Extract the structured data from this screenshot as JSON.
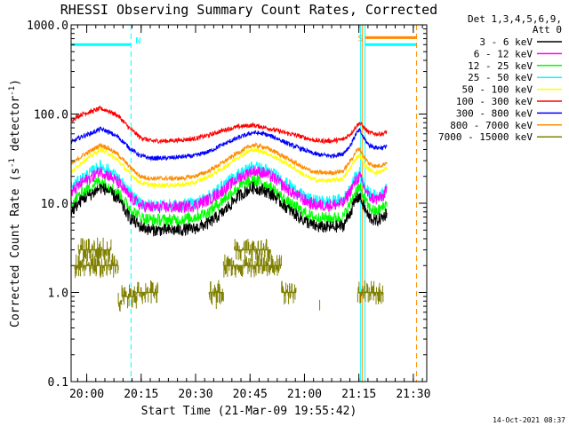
{
  "chart_data": {
    "type": "line",
    "title": "RHESSI Observing Summary Count Rates, Corrected",
    "xlabel": "Start Time (21-Mar-09 19:55:42)",
    "ylabel": "Corrected Count Rate (s^-1 detector^-1)",
    "ylabel_parts": {
      "main": "Corrected Count Rate (s",
      "sup1": "-1",
      "mid": " detector",
      "sup2": "-1",
      "end": ")"
    },
    "yscale": "log",
    "ylim": [
      0.1,
      1000
    ],
    "xlim_minutes": [
      0,
      98
    ],
    "x_ticks": [
      {
        "label": "20:00",
        "minutes": 4.3
      },
      {
        "label": "20:15",
        "minutes": 19.3
      },
      {
        "label": "20:30",
        "minutes": 34.3
      },
      {
        "label": "20:45",
        "minutes": 49.3
      },
      {
        "label": "21:00",
        "minutes": 64.3
      },
      {
        "label": "21:15",
        "minutes": 79.3
      },
      {
        "label": "21:30",
        "minutes": 94.3
      }
    ],
    "y_ticks": [
      {
        "label": "0.1",
        "value": 0.1
      },
      {
        "label": "1.0",
        "value": 1
      },
      {
        "label": "10.0",
        "value": 10
      },
      {
        "label": "100.0",
        "value": 100
      },
      {
        "label": "1000.0",
        "value": 1000
      }
    ],
    "legend": {
      "position": "right",
      "header": [
        "Det 1,3,4,5,6,9,",
        "Att 0"
      ],
      "entries": [
        {
          "name": "3 - 6 keV",
          "color": "#000000"
        },
        {
          "name": "6 - 12 keV",
          "color": "#ff00ff"
        },
        {
          "name": "12 - 25 keV",
          "color": "#00ff00"
        },
        {
          "name": "25 - 50 keV",
          "color": "#00ffff"
        },
        {
          "name": "50 - 100 keV",
          "color": "#ffff00"
        },
        {
          "name": "100 - 300 keV",
          "color": "#ff0000"
        },
        {
          "name": "300 - 800 keV",
          "color": "#0000ff"
        },
        {
          "name": "800 - 7000 keV",
          "color": "#ff8c00"
        },
        {
          "name": "7000 - 15000 keV",
          "color": "#808000"
        }
      ]
    },
    "main_series": [
      {
        "name": "100 - 300 keV",
        "color": "#ff0000",
        "points": [
          [
            0,
            85
          ],
          [
            3,
            100
          ],
          [
            6,
            108
          ],
          [
            8,
            115
          ],
          [
            10,
            110
          ],
          [
            13,
            95
          ],
          [
            16,
            70
          ],
          [
            19,
            55
          ],
          [
            22,
            50
          ],
          [
            26,
            50
          ],
          [
            30,
            51
          ],
          [
            34,
            53
          ],
          [
            38,
            58
          ],
          [
            42,
            66
          ],
          [
            46,
            72
          ],
          [
            50,
            75
          ],
          [
            54,
            70
          ],
          [
            58,
            63
          ],
          [
            62,
            58
          ],
          [
            64,
            55
          ],
          [
            66,
            52
          ],
          [
            68,
            50
          ],
          [
            72,
            50
          ],
          [
            75,
            52
          ],
          [
            77,
            60
          ],
          [
            78.5,
            72
          ],
          [
            79.5,
            80
          ],
          [
            80.5,
            72
          ],
          [
            82,
            62
          ],
          [
            84,
            60
          ],
          [
            86,
            60
          ],
          [
            87,
            63
          ]
        ]
      },
      {
        "name": "300 - 800 keV",
        "color": "#0000ff",
        "points": [
          [
            0,
            48
          ],
          [
            3,
            56
          ],
          [
            6,
            62
          ],
          [
            8,
            68
          ],
          [
            10,
            64
          ],
          [
            13,
            55
          ],
          [
            16,
            42
          ],
          [
            19,
            34
          ],
          [
            22,
            32
          ],
          [
            26,
            32
          ],
          [
            30,
            33
          ],
          [
            34,
            34
          ],
          [
            38,
            38
          ],
          [
            42,
            46
          ],
          [
            46,
            54
          ],
          [
            50,
            62
          ],
          [
            53,
            60
          ],
          [
            56,
            55
          ],
          [
            60,
            46
          ],
          [
            64,
            40
          ],
          [
            66,
            37
          ],
          [
            68,
            35
          ],
          [
            72,
            34
          ],
          [
            75,
            36
          ],
          [
            77,
            45
          ],
          [
            78.5,
            60
          ],
          [
            79.5,
            66
          ],
          [
            80.5,
            55
          ],
          [
            82,
            45
          ],
          [
            84,
            42
          ],
          [
            86,
            42
          ],
          [
            87,
            44
          ]
        ]
      },
      {
        "name": "800 - 7000 keV",
        "color": "#ff8c00",
        "points": [
          [
            0,
            27
          ],
          [
            3,
            34
          ],
          [
            6,
            40
          ],
          [
            8,
            45
          ],
          [
            10,
            42
          ],
          [
            13,
            35
          ],
          [
            16,
            26
          ],
          [
            19,
            20
          ],
          [
            22,
            19
          ],
          [
            26,
            19
          ],
          [
            30,
            19
          ],
          [
            34,
            20
          ],
          [
            38,
            23
          ],
          [
            42,
            29
          ],
          [
            46,
            37
          ],
          [
            50,
            45
          ],
          [
            53,
            43
          ],
          [
            56,
            38
          ],
          [
            60,
            31
          ],
          [
            64,
            25
          ],
          [
            66,
            23
          ],
          [
            68,
            22
          ],
          [
            72,
            22
          ],
          [
            75,
            23
          ],
          [
            77,
            30
          ],
          [
            78.5,
            38
          ],
          [
            79.5,
            41
          ],
          [
            80.5,
            34
          ],
          [
            82,
            28
          ],
          [
            84,
            26
          ],
          [
            86,
            27
          ],
          [
            87,
            29
          ]
        ]
      },
      {
        "name": "50 - 100 keV",
        "color": "#ffff00",
        "points": [
          [
            0,
            22
          ],
          [
            3,
            29
          ],
          [
            6,
            35
          ],
          [
            8,
            40
          ],
          [
            10,
            37
          ],
          [
            13,
            30
          ],
          [
            16,
            22
          ],
          [
            19,
            17
          ],
          [
            22,
            16
          ],
          [
            26,
            16
          ],
          [
            30,
            16
          ],
          [
            34,
            17
          ],
          [
            38,
            20
          ],
          [
            42,
            25
          ],
          [
            46,
            33
          ],
          [
            50,
            40
          ],
          [
            53,
            38
          ],
          [
            56,
            33
          ],
          [
            60,
            27
          ],
          [
            64,
            21
          ],
          [
            66,
            19
          ],
          [
            68,
            18
          ],
          [
            72,
            18
          ],
          [
            75,
            19
          ],
          [
            77,
            25
          ],
          [
            78.5,
            32
          ],
          [
            79.5,
            35
          ],
          [
            80.5,
            29
          ],
          [
            82,
            24
          ],
          [
            84,
            22
          ],
          [
            86,
            23
          ],
          [
            87,
            25
          ]
        ]
      },
      {
        "name": "25 - 50 keV",
        "color": "#00ffff",
        "points": [
          [
            0,
            15
          ],
          [
            3,
            19
          ],
          [
            6,
            23
          ],
          [
            8,
            26
          ],
          [
            10,
            24
          ],
          [
            13,
            19
          ],
          [
            16,
            13
          ],
          [
            19,
            10
          ],
          [
            22,
            9.5
          ],
          [
            26,
            9.5
          ],
          [
            30,
            9.5
          ],
          [
            34,
            10
          ],
          [
            38,
            12
          ],
          [
            42,
            16
          ],
          [
            46,
            21
          ],
          [
            50,
            26
          ],
          [
            53,
            24
          ],
          [
            56,
            21
          ],
          [
            60,
            16
          ],
          [
            64,
            12
          ],
          [
            66,
            11
          ],
          [
            68,
            10.5
          ],
          [
            72,
            10.5
          ],
          [
            75,
            11
          ],
          [
            77,
            15
          ],
          [
            78.5,
            20
          ],
          [
            79.5,
            22
          ],
          [
            80.5,
            17
          ],
          [
            82,
            13
          ],
          [
            84,
            12
          ],
          [
            86,
            13
          ],
          [
            87,
            15
          ]
        ]
      },
      {
        "name": "6 - 12 keV",
        "color": "#ff00ff",
        "points": [
          [
            0,
            13
          ],
          [
            3,
            17
          ],
          [
            6,
            20
          ],
          [
            8,
            23
          ],
          [
            10,
            21
          ],
          [
            13,
            17
          ],
          [
            16,
            12
          ],
          [
            19,
            9.5
          ],
          [
            22,
            9
          ],
          [
            26,
            9
          ],
          [
            30,
            9
          ],
          [
            34,
            9.5
          ],
          [
            38,
            11
          ],
          [
            42,
            14
          ],
          [
            46,
            19
          ],
          [
            50,
            23
          ],
          [
            53,
            22
          ],
          [
            56,
            19
          ],
          [
            60,
            14
          ],
          [
            64,
            11
          ],
          [
            66,
            10
          ],
          [
            68,
            9.5
          ],
          [
            72,
            9.5
          ],
          [
            75,
            10
          ],
          [
            77,
            14
          ],
          [
            78.5,
            18
          ],
          [
            79.5,
            20
          ],
          [
            80.5,
            16
          ],
          [
            82,
            12
          ],
          [
            84,
            11
          ],
          [
            86,
            12
          ],
          [
            87,
            14
          ]
        ]
      },
      {
        "name": "12 - 25 keV",
        "color": "#00ff00",
        "points": [
          [
            0,
            10
          ],
          [
            3,
            13
          ],
          [
            6,
            16
          ],
          [
            8,
            18
          ],
          [
            10,
            16
          ],
          [
            13,
            13
          ],
          [
            16,
            9
          ],
          [
            19,
            7
          ],
          [
            22,
            6.5
          ],
          [
            26,
            6.5
          ],
          [
            30,
            6.5
          ],
          [
            34,
            7
          ],
          [
            38,
            8
          ],
          [
            42,
            11
          ],
          [
            46,
            15
          ],
          [
            50,
            18
          ],
          [
            53,
            17
          ],
          [
            56,
            14
          ],
          [
            60,
            10
          ],
          [
            64,
            8
          ],
          [
            66,
            7.2
          ],
          [
            68,
            6.8
          ],
          [
            72,
            6.8
          ],
          [
            75,
            7
          ],
          [
            77,
            10
          ],
          [
            78.5,
            14
          ],
          [
            79.5,
            15
          ],
          [
            80.5,
            12
          ],
          [
            82,
            9
          ],
          [
            84,
            8
          ],
          [
            86,
            9
          ],
          [
            87,
            10
          ]
        ]
      },
      {
        "name": "3 - 6 keV",
        "color": "#000000",
        "points": [
          [
            0,
            8
          ],
          [
            3,
            11
          ],
          [
            6,
            13
          ],
          [
            8,
            15
          ],
          [
            10,
            14
          ],
          [
            13,
            11
          ],
          [
            16,
            7
          ],
          [
            19,
            5.5
          ],
          [
            22,
            5
          ],
          [
            26,
            5
          ],
          [
            30,
            5
          ],
          [
            34,
            5.2
          ],
          [
            38,
            6
          ],
          [
            42,
            8
          ],
          [
            46,
            12
          ],
          [
            50,
            15
          ],
          [
            53,
            14
          ],
          [
            56,
            12
          ],
          [
            60,
            8.5
          ],
          [
            64,
            6.5
          ],
          [
            66,
            5.8
          ],
          [
            68,
            5.4
          ],
          [
            72,
            5.4
          ],
          [
            75,
            5.6
          ],
          [
            77,
            8
          ],
          [
            78.5,
            11
          ],
          [
            79.5,
            12
          ],
          [
            80.5,
            9.5
          ],
          [
            82,
            7
          ],
          [
            84,
            6.3
          ],
          [
            86,
            7
          ],
          [
            87,
            8
          ]
        ]
      }
    ],
    "olive_segments": [
      {
        "x": [
          1,
          13
        ],
        "y": 2.0
      },
      {
        "x": [
          2,
          11
        ],
        "y": 3.0
      },
      {
        "x": [
          13,
          14
        ],
        "y": 0.75
      },
      {
        "x": [
          14,
          18
        ],
        "y": 0.9
      },
      {
        "x": [
          18,
          24
        ],
        "y": 1.0
      },
      {
        "x": [
          38,
          42
        ],
        "y": 1.0
      },
      {
        "x": [
          42,
          50
        ],
        "y": 2.0
      },
      {
        "x": [
          45,
          55
        ],
        "y": 3.0
      },
      {
        "x": [
          50,
          58
        ],
        "y": 2.0
      },
      {
        "x": [
          58,
          62
        ],
        "y": 1.0
      },
      {
        "x": [
          79,
          86
        ],
        "y": 1.0
      }
    ],
    "vertical_markers": [
      {
        "x": 0,
        "color": "#00ffff",
        "style": "solid"
      },
      {
        "x": 16.5,
        "color": "#00ffff",
        "style": "dashed",
        "label": "N"
      },
      {
        "x": 79.8,
        "color": "#00ffff",
        "style": "solid"
      },
      {
        "x": 80.3,
        "color": "#ff8c00",
        "style": "solid"
      },
      {
        "x": 81.0,
        "color": "#00ffff",
        "style": "solid"
      },
      {
        "x": 95.2,
        "color": "#ff8c00",
        "style": "dashed"
      }
    ],
    "horizontal_markers": [
      {
        "x": [
          0,
          16.5
        ],
        "y": 600,
        "color": "#00ffff"
      },
      {
        "x": [
          81,
          95.2
        ],
        "y": 600,
        "color": "#00ffff"
      },
      {
        "x": [
          81,
          95.2
        ],
        "y": 720,
        "color": "#ff8c00",
        "label": "S"
      }
    ],
    "footer_date": "14-Oct-2021 08:37"
  }
}
